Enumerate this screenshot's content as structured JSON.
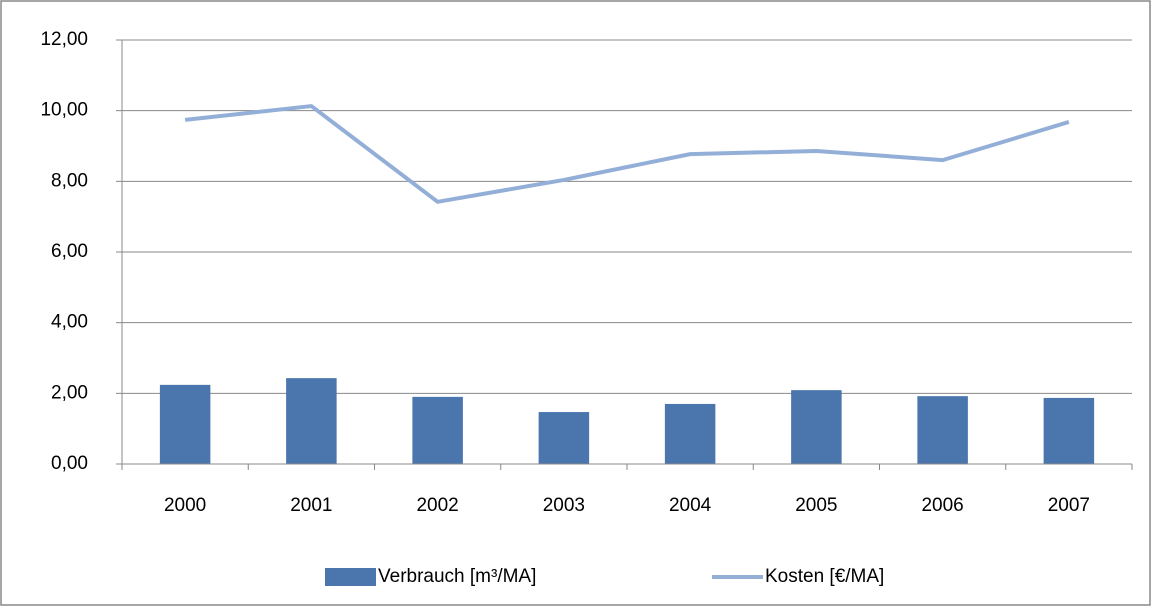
{
  "chart_data": {
    "type": "combo",
    "categories": [
      "2000",
      "2001",
      "2002",
      "2003",
      "2004",
      "2005",
      "2006",
      "2007"
    ],
    "series": [
      {
        "name": "Verbrauch [m³/MA]",
        "type": "bar",
        "color": "#4a76ad",
        "values": [
          2.24,
          2.43,
          1.9,
          1.47,
          1.7,
          2.09,
          1.92,
          1.87
        ]
      },
      {
        "name": "Kosten [€/MA]",
        "type": "line",
        "color": "#93afd8",
        "values": [
          9.74,
          10.13,
          7.42,
          8.04,
          8.77,
          8.86,
          8.6,
          9.68
        ]
      }
    ],
    "ylim": [
      0,
      12
    ],
    "yticks": [
      {
        "value": 0,
        "label": "0,00"
      },
      {
        "value": 2,
        "label": "2,00"
      },
      {
        "value": 4,
        "label": "4,00"
      },
      {
        "value": 6,
        "label": "6,00"
      },
      {
        "value": 8,
        "label": "8,00"
      },
      {
        "value": 10,
        "label": "10,00"
      },
      {
        "value": 12,
        "label": "12,00"
      }
    ],
    "grid": true,
    "legend": "bottom"
  }
}
